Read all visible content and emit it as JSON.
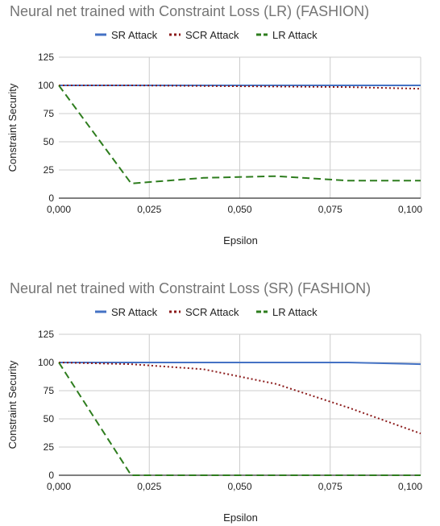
{
  "chart_data": [
    {
      "type": "line",
      "title": "Neural net trained with Constraint Loss (LR) (FASHION)",
      "xlabel": "Epsilon",
      "ylabel": "Constraint Security",
      "xlim": [
        0,
        0.1
      ],
      "ylim": [
        0,
        125
      ],
      "xticks": [
        "0,000",
        "0,025",
        "0,050",
        "0,075",
        "0,100"
      ],
      "yticks": [
        "0",
        "25",
        "50",
        "75",
        "100",
        "125"
      ],
      "grid": true,
      "legend_position": "top",
      "x": [
        0,
        0.02,
        0.04,
        0.06,
        0.08,
        0.1
      ],
      "series": [
        {
          "name": "SR Attack",
          "color": "#4472c4",
          "dash": "solid",
          "values": [
            100,
            100,
            100,
            100,
            100,
            100
          ]
        },
        {
          "name": "SCR Attack",
          "color": "#8b1a1a",
          "dash": "dotted",
          "values": [
            100,
            100,
            99.5,
            99,
            98.5,
            97
          ]
        },
        {
          "name": "LR Attack",
          "color": "#2e7d1e",
          "dash": "dashed",
          "values": [
            100,
            13,
            18,
            19.5,
            15.5,
            15.5
          ]
        }
      ]
    },
    {
      "type": "line",
      "title": "Neural net trained with Constraint Loss (SR) (FASHION)",
      "xlabel": "Epsilon",
      "ylabel": "Constraint Security",
      "xlim": [
        0,
        0.1
      ],
      "ylim": [
        0,
        125
      ],
      "xticks": [
        "0,000",
        "0,025",
        "0,050",
        "0,075",
        "0,100"
      ],
      "yticks": [
        "0",
        "25",
        "50",
        "75",
        "100",
        "125"
      ],
      "grid": true,
      "legend_position": "top",
      "x": [
        0,
        0.02,
        0.04,
        0.06,
        0.08,
        0.1
      ],
      "series": [
        {
          "name": "SR Attack",
          "color": "#4472c4",
          "dash": "solid",
          "values": [
            100,
            100,
            100,
            100,
            100,
            98.5
          ]
        },
        {
          "name": "SCR Attack",
          "color": "#8b1a1a",
          "dash": "dotted",
          "values": [
            100,
            98.5,
            94,
            81,
            60,
            37
          ]
        },
        {
          "name": "LR Attack",
          "color": "#2e7d1e",
          "dash": "dashed",
          "values": [
            100,
            0,
            0,
            0,
            0,
            0
          ]
        }
      ]
    }
  ]
}
